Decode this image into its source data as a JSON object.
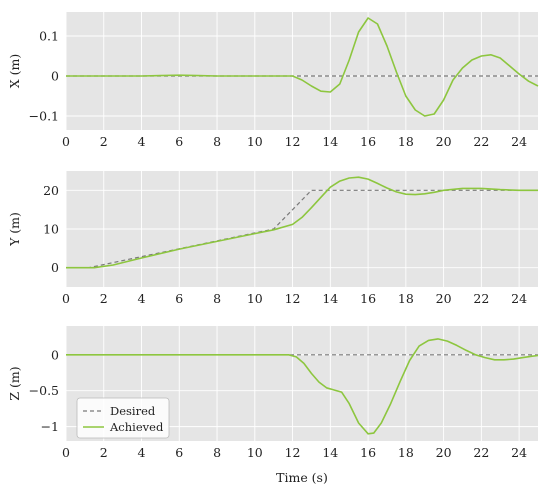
{
  "figure": {
    "xlabel": "Time (s)",
    "legend": {
      "placement": "lower-left of bottom panel",
      "entries": [
        {
          "label": "Desired",
          "style": "dashed",
          "color": "#7a7a7a"
        },
        {
          "label": "Achieved",
          "style": "solid",
          "color": "#8dc63f"
        }
      ]
    },
    "colors": {
      "panel_bg": "#e5e5e5",
      "grid": "#ffffff",
      "desired": "#7a7a7a",
      "achieved": "#8dc63f"
    }
  },
  "chart_data": [
    {
      "type": "line",
      "ylabel": "X (m)",
      "xlim": [
        0,
        25
      ],
      "ylim": [
        -0.135,
        0.16
      ],
      "xticks": [
        0,
        2,
        4,
        6,
        8,
        10,
        12,
        14,
        16,
        18,
        20,
        22,
        24
      ],
      "yticks": [
        -0.1,
        0,
        0.1
      ],
      "ytick_labels": [
        "−0.1",
        "0",
        "0.1"
      ],
      "grid": true,
      "series": [
        {
          "name": "Desired",
          "style": "dashed",
          "x": [
            0,
            25
          ],
          "y": [
            0,
            0
          ]
        },
        {
          "name": "Achieved",
          "style": "solid",
          "x": [
            0,
            4,
            5,
            6,
            7,
            8,
            10,
            12,
            12.5,
            13,
            13.5,
            14,
            14.5,
            15,
            15.5,
            16,
            16.5,
            17,
            17.5,
            18,
            18.5,
            19,
            19.5,
            20,
            20.5,
            21,
            21.5,
            22,
            22.5,
            23,
            23.5,
            24,
            24.5,
            25
          ],
          "y": [
            0,
            0,
            0.001,
            0.002,
            0.001,
            0,
            0,
            0,
            -0.01,
            -0.025,
            -0.038,
            -0.04,
            -0.02,
            0.04,
            0.11,
            0.145,
            0.13,
            0.075,
            0.01,
            -0.05,
            -0.085,
            -0.1,
            -0.095,
            -0.06,
            -0.01,
            0.02,
            0.04,
            0.05,
            0.053,
            0.045,
            0.025,
            0.005,
            -0.013,
            -0.025
          ]
        }
      ]
    },
    {
      "type": "line",
      "ylabel": "Y (m)",
      "xlim": [
        0,
        25
      ],
      "ylim": [
        -5,
        25
      ],
      "xticks": [
        0,
        2,
        4,
        6,
        8,
        10,
        12,
        14,
        16,
        18,
        20,
        22,
        24
      ],
      "yticks": [
        0,
        10,
        20
      ],
      "ytick_labels": [
        "0",
        "10",
        "20"
      ],
      "grid": true,
      "series": [
        {
          "name": "Desired",
          "style": "dashed",
          "x": [
            0,
            1.2,
            11,
            13,
            25
          ],
          "y": [
            0,
            0,
            10,
            20,
            20
          ]
        },
        {
          "name": "Achieved",
          "style": "solid",
          "x": [
            0,
            1.5,
            2.5,
            4,
            6,
            8,
            10,
            11,
            12,
            12.5,
            13,
            13.5,
            14,
            14.5,
            15,
            15.5,
            16,
            16.5,
            17,
            17.5,
            18,
            18.5,
            19,
            19.5,
            20,
            21,
            22,
            23,
            24,
            25
          ],
          "y": [
            0,
            0,
            0.7,
            2.5,
            4.8,
            6.8,
            8.8,
            9.8,
            11.2,
            13,
            15.5,
            18.2,
            20.8,
            22.4,
            23.2,
            23.4,
            22.9,
            21.8,
            20.6,
            19.6,
            19,
            18.9,
            19.1,
            19.5,
            20,
            20.5,
            20.5,
            20.2,
            20,
            20
          ]
        }
      ]
    },
    {
      "type": "line",
      "ylabel": "Z (m)",
      "xlim": [
        0,
        25
      ],
      "ylim": [
        -1.2,
        0.4
      ],
      "xticks": [
        0,
        2,
        4,
        6,
        8,
        10,
        12,
        14,
        16,
        18,
        20,
        22,
        24
      ],
      "yticks": [
        -1,
        -0.5,
        0
      ],
      "ytick_labels": [
        "−1",
        "−0.5",
        "0"
      ],
      "grid": true,
      "series": [
        {
          "name": "Desired",
          "style": "dashed",
          "x": [
            0,
            25
          ],
          "y": [
            0,
            0
          ]
        },
        {
          "name": "Achieved",
          "style": "solid",
          "x": [
            0,
            11.8,
            12.2,
            12.6,
            13,
            13.4,
            13.8,
            14.2,
            14.6,
            15,
            15.5,
            16,
            16.3,
            16.7,
            17.2,
            17.7,
            18.2,
            18.7,
            19.2,
            19.7,
            20.2,
            20.7,
            21.2,
            21.7,
            22.2,
            22.7,
            23.2,
            23.7,
            24.2,
            24.7,
            25
          ],
          "y": [
            0,
            0,
            -0.03,
            -0.12,
            -0.26,
            -0.38,
            -0.46,
            -0.49,
            -0.52,
            -0.68,
            -0.95,
            -1.1,
            -1.09,
            -0.95,
            -0.68,
            -0.37,
            -0.08,
            0.12,
            0.2,
            0.22,
            0.19,
            0.13,
            0.06,
            0,
            -0.04,
            -0.07,
            -0.07,
            -0.06,
            -0.04,
            -0.02,
            -0.01
          ]
        }
      ]
    }
  ]
}
